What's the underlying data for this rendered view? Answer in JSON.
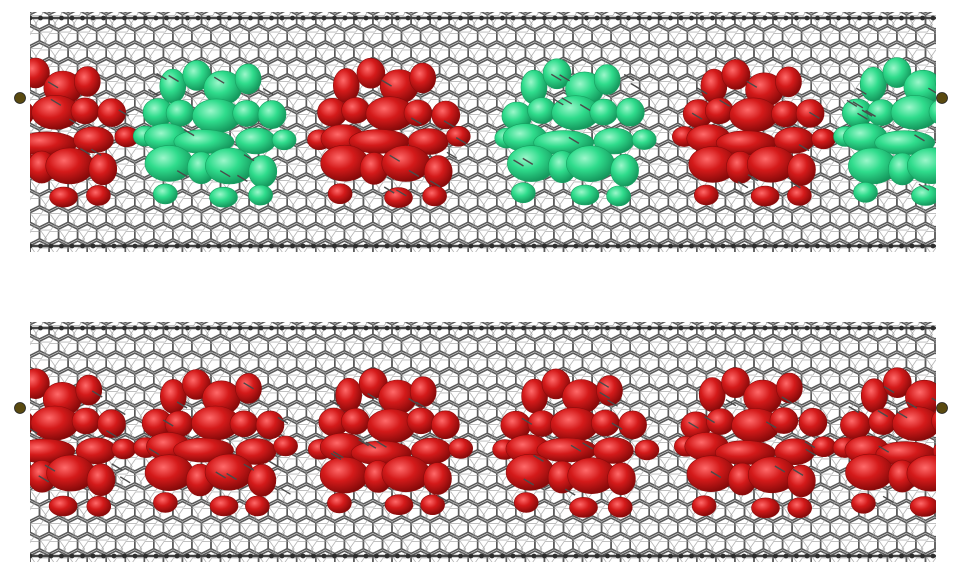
{
  "figure": {
    "panels": [
      {
        "id": "top",
        "lobe_pattern": [
          "red",
          "green",
          "red",
          "green",
          "red",
          "green"
        ]
      },
      {
        "id": "bottom",
        "lobe_pattern": [
          "red",
          "red",
          "red",
          "red",
          "red",
          "red"
        ]
      }
    ],
    "colors": {
      "background": "#ffffff",
      "lattice_bond": "#5a5a5a",
      "lattice_atom": "#2e2e2e",
      "red_lobe": "#d41a1a",
      "red_lobe_dark": "#8c0c0c",
      "green_lobe": "#2fdc8c",
      "green_lobe_dark": "#15a060",
      "end_cap": "#5a4a10"
    }
  }
}
